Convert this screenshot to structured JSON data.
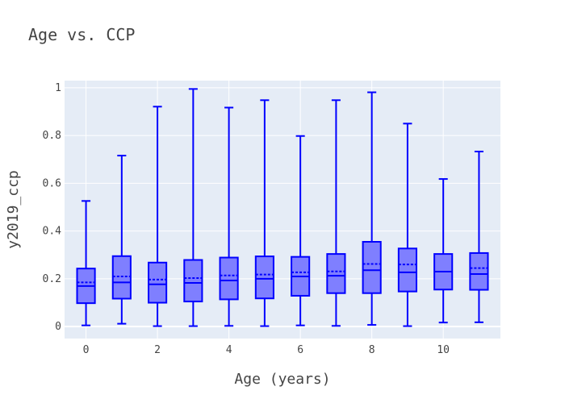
{
  "chart_data": {
    "type": "box",
    "title": "Age vs. CCP",
    "xlabel": "Age (years)",
    "ylabel": "y2019_ccp",
    "xlim": [
      -0.6,
      11.6
    ],
    "ylim": [
      -0.05,
      1.03
    ],
    "x_ticks": [
      0,
      2,
      4,
      6,
      8,
      10
    ],
    "y_ticks": [
      0,
      0.2,
      0.4,
      0.6,
      0.8,
      1
    ],
    "y_tick_labels": [
      "0",
      "0.2",
      "0.4",
      "0.6",
      "0.8",
      "1"
    ],
    "grid": true,
    "box_color": "#0000ff",
    "box_fill": "#7f7fff",
    "plot_bg": "#e5ecf6",
    "boxes": [
      {
        "age": 0,
        "min": 0.005,
        "q1": 0.098,
        "median": 0.17,
        "mean": 0.185,
        "q3": 0.243,
        "max": 0.526
      },
      {
        "age": 1,
        "min": 0.012,
        "q1": 0.117,
        "median": 0.185,
        "mean": 0.21,
        "q3": 0.295,
        "max": 0.716
      },
      {
        "age": 2,
        "min": 0.002,
        "q1": 0.1,
        "median": 0.177,
        "mean": 0.197,
        "q3": 0.268,
        "max": 0.921
      },
      {
        "age": 3,
        "min": 0.002,
        "q1": 0.105,
        "median": 0.183,
        "mean": 0.203,
        "q3": 0.279,
        "max": 0.995
      },
      {
        "age": 4,
        "min": 0.003,
        "q1": 0.114,
        "median": 0.193,
        "mean": 0.214,
        "q3": 0.289,
        "max": 0.917
      },
      {
        "age": 5,
        "min": 0.002,
        "q1": 0.118,
        "median": 0.2,
        "mean": 0.218,
        "q3": 0.294,
        "max": 0.948
      },
      {
        "age": 6,
        "min": 0.005,
        "q1": 0.129,
        "median": 0.21,
        "mean": 0.227,
        "q3": 0.292,
        "max": 0.798
      },
      {
        "age": 7,
        "min": 0.003,
        "q1": 0.14,
        "median": 0.213,
        "mean": 0.231,
        "q3": 0.304,
        "max": 0.948
      },
      {
        "age": 8,
        "min": 0.007,
        "q1": 0.14,
        "median": 0.236,
        "mean": 0.262,
        "q3": 0.355,
        "max": 0.981
      },
      {
        "age": 9,
        "min": 0.002,
        "q1": 0.147,
        "median": 0.227,
        "mean": 0.26,
        "q3": 0.327,
        "max": 0.85
      },
      {
        "age": 10,
        "min": 0.017,
        "q1": 0.155,
        "median": 0.23,
        "mean": 0.23,
        "q3": 0.304,
        "max": 0.618
      },
      {
        "age": 11,
        "min": 0.018,
        "q1": 0.154,
        "median": 0.22,
        "mean": 0.245,
        "q3": 0.308,
        "max": 0.733
      }
    ]
  }
}
